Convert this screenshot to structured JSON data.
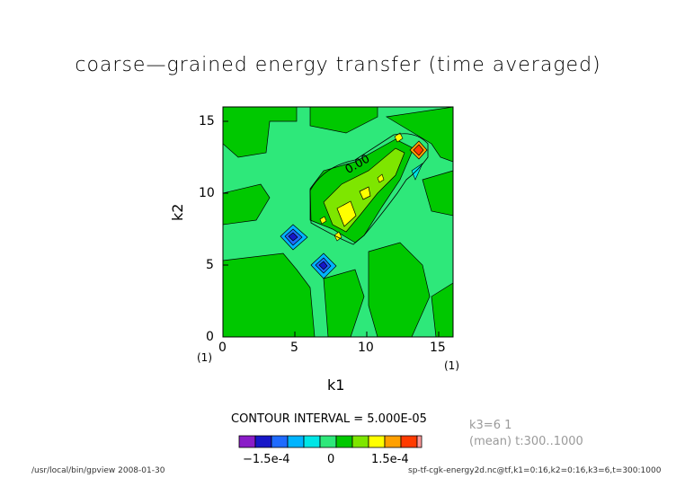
{
  "title": "coarse—grained energy transfer (time averaged)",
  "chart_data": {
    "type": "heatmap",
    "title": "coarse—grained energy transfer (time averaged)",
    "xlabel": "k1",
    "ylabel": "k2",
    "xlim": [
      0,
      16
    ],
    "ylim": [
      0,
      16
    ],
    "x_ticks": [
      "0",
      "5",
      "10",
      "15"
    ],
    "y_ticks": [
      "0",
      "5",
      "10",
      "15"
    ],
    "x_unit_label": "(1)",
    "y_unit_label": "(1)",
    "contour_label": "0.00",
    "features": [
      {
        "k1": 5,
        "k2": 7,
        "value": -0.00019
      },
      {
        "k1": 7,
        "k2": 5,
        "value": -0.00019
      },
      {
        "k1": 13,
        "k2": 13,
        "value": 0.00025
      },
      {
        "k1": 9,
        "k2": 9,
        "value": 0.00016
      },
      {
        "k1": 10,
        "k2": 10,
        "value": 0.00012
      }
    ],
    "contour_interval": "5.000E-05",
    "colorbar": {
      "colors": [
        "#8a1cc8",
        "#1717c8",
        "#1f6bff",
        "#00b4ff",
        "#00e6e6",
        "#2ee87a",
        "#00c800",
        "#7ee600",
        "#ffff00",
        "#ffa000",
        "#ff3b00",
        "#ff9999"
      ],
      "tick_labels": [
        "−1.5e-4",
        "0",
        "1.5e-4"
      ]
    }
  },
  "annotations": {
    "contour_interval_text": "CONTOUR INTERVAL = 5.000E-05",
    "k3_text": "k3=6 1",
    "mean_text": "(mean) t:300..1000"
  },
  "footer": {
    "left": "/usr/local/bin/gpview  2008-01-30",
    "right": "sp-tf-cgk-energy2d.nc@tf,k1=0:16,k2=0:16,k3=6,t=300:1000"
  }
}
